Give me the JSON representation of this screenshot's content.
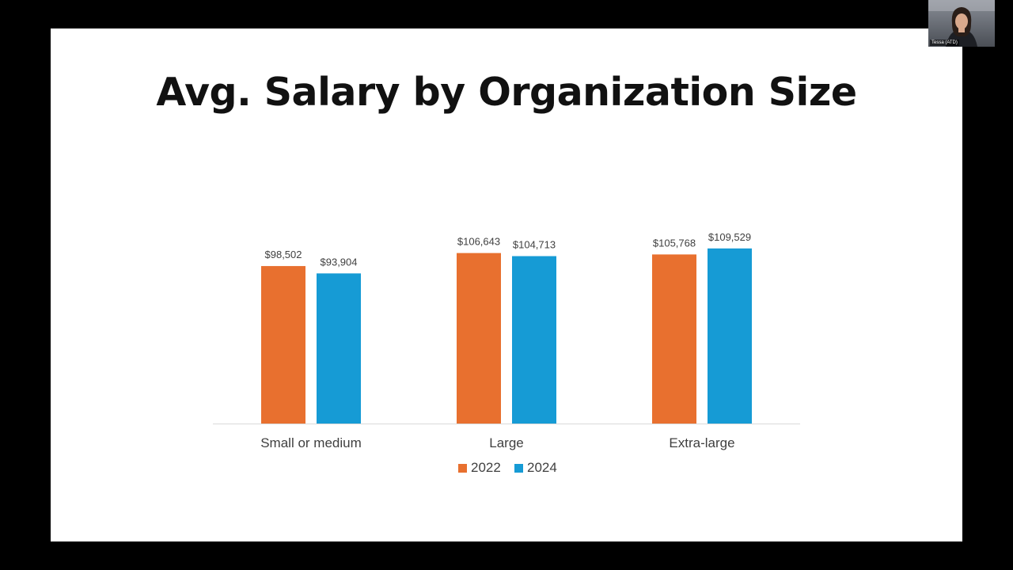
{
  "slide": {
    "title": "Avg. Salary by Organization Size"
  },
  "webcam": {
    "participant_name": "Tessa (ATD)"
  },
  "colors": {
    "series_2022": "#E8702F",
    "series_2024": "#169BD5",
    "axis_line": "#D9D9D9",
    "label_text": "#404040",
    "title_text": "#111111"
  },
  "chart_data": {
    "type": "bar",
    "title": "Avg. Salary by Organization Size",
    "xlabel": "",
    "ylabel": "",
    "ylim": [
      0,
      120000
    ],
    "grid": false,
    "legend_position": "bottom",
    "categories": [
      "Small or medium",
      "Large",
      "Extra-large"
    ],
    "series": [
      {
        "name": "2022",
        "values": [
          98502,
          106643,
          105768
        ],
        "labels": [
          "$98,502",
          "$106,643",
          "$105,768"
        ]
      },
      {
        "name": "2024",
        "values": [
          93904,
          104713,
          109529
        ],
        "labels": [
          "$93,904",
          "$104,713",
          "$109,529"
        ]
      }
    ]
  }
}
